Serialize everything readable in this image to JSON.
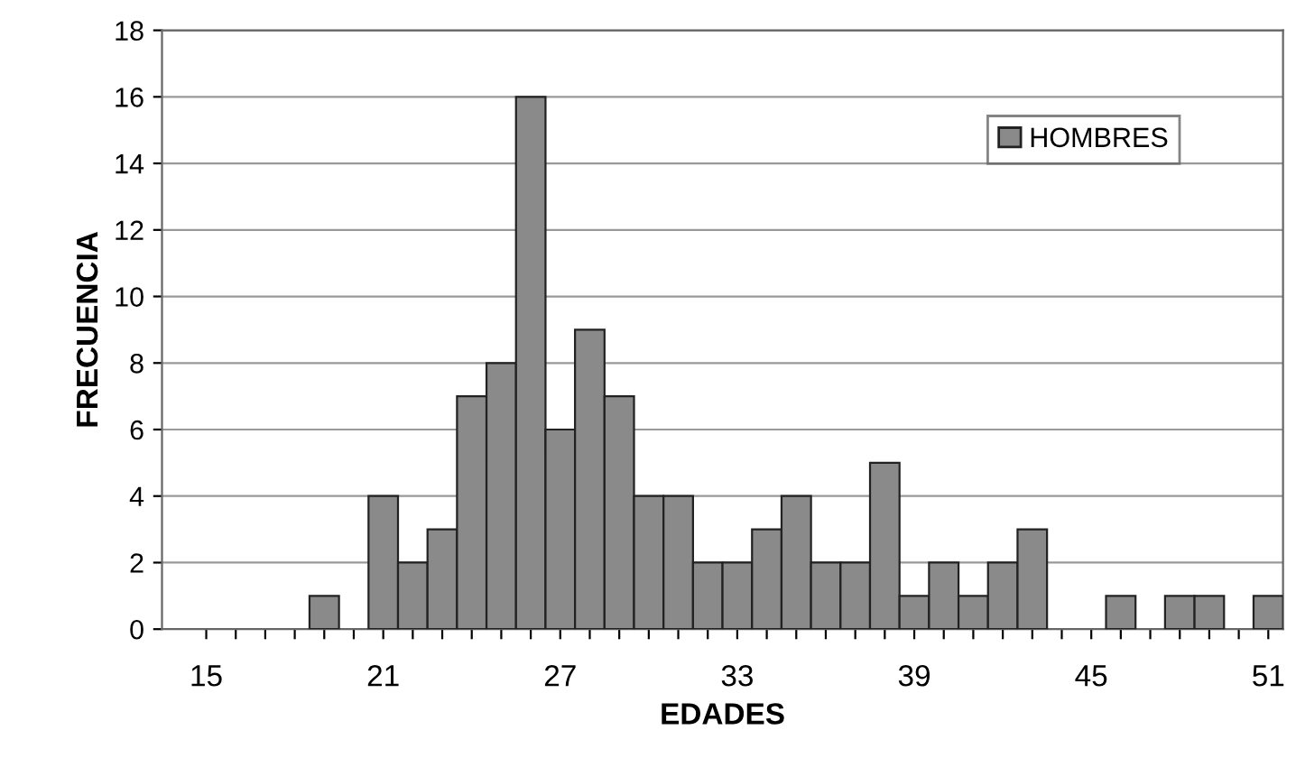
{
  "chart_data": {
    "type": "bar",
    "xlabel": "EDADES",
    "ylabel": "FRECUENCIA",
    "categories": [
      "15",
      null,
      null,
      null,
      null,
      null,
      "21",
      null,
      null,
      null,
      null,
      null,
      "27",
      null,
      null,
      null,
      null,
      null,
      "33",
      null,
      null,
      null,
      null,
      null,
      "39",
      null,
      null,
      null,
      null,
      null,
      "45",
      null,
      null,
      null,
      null,
      null,
      "51"
    ],
    "series": [
      {
        "name": "HOMBRES",
        "color": "#8a8a8a",
        "values": [
          0,
          0,
          0,
          0,
          1,
          0,
          4,
          2,
          3,
          7,
          8,
          16,
          6,
          9,
          7,
          4,
          4,
          2,
          2,
          3,
          4,
          2,
          2,
          5,
          1,
          2,
          1,
          2,
          3,
          0,
          0,
          1,
          0,
          1,
          1,
          0,
          1
        ]
      }
    ],
    "ylim": [
      0,
      18
    ],
    "yticks": [
      0,
      2,
      4,
      6,
      8,
      10,
      12,
      14,
      16,
      18
    ],
    "grid": "y",
    "legend": "top right"
  }
}
